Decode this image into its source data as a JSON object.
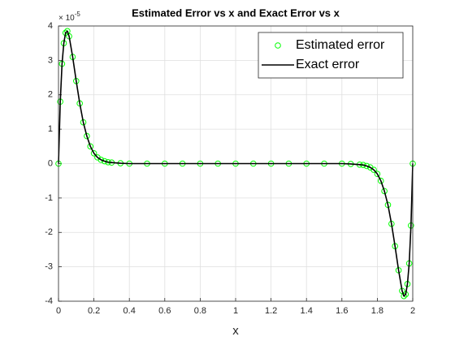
{
  "chart_data": {
    "type": "line",
    "title": "Estimated Error vs x and Exact Error vs x",
    "x_label": "x",
    "y_multiplier": {
      "base": "× 10",
      "power": "-5"
    },
    "x": [
      0,
      0.01,
      0.02,
      0.03,
      0.04,
      0.05,
      0.06,
      0.08,
      0.1,
      0.12,
      0.14,
      0.16,
      0.18,
      0.2,
      0.22,
      0.24,
      0.26,
      0.28,
      0.3,
      0.35,
      0.4,
      0.5,
      0.6,
      0.7,
      0.8,
      0.9,
      1.0,
      1.1,
      1.2,
      1.3,
      1.4,
      1.5,
      1.6,
      1.65,
      1.7,
      1.72,
      1.74,
      1.76,
      1.78,
      1.8,
      1.82,
      1.84,
      1.86,
      1.88,
      1.9,
      1.92,
      1.94,
      1.95,
      1.96,
      1.97,
      1.98,
      1.99,
      2
    ],
    "series": [
      {
        "name": "Estimated error",
        "color": "#00ff00",
        "marker": "circle",
        "values": [
          0,
          1.8,
          2.9,
          3.5,
          3.8,
          3.85,
          3.7,
          3.1,
          2.4,
          1.75,
          1.2,
          0.8,
          0.5,
          0.3,
          0.18,
          0.11,
          0.07,
          0.04,
          0.03,
          0.01,
          0,
          0,
          0,
          0,
          0,
          0,
          0,
          0,
          0,
          0,
          0,
          0,
          0,
          -0.01,
          -0.03,
          -0.04,
          -0.07,
          -0.11,
          -0.18,
          -0.3,
          -0.5,
          -0.8,
          -1.2,
          -1.75,
          -2.4,
          -3.1,
          -3.7,
          -3.85,
          -3.8,
          -3.5,
          -2.9,
          -1.8,
          0
        ]
      },
      {
        "name": "Exact error",
        "color": "#000000",
        "marker": "line",
        "values": [
          0,
          1.8,
          2.9,
          3.5,
          3.8,
          3.85,
          3.7,
          3.1,
          2.4,
          1.75,
          1.2,
          0.8,
          0.5,
          0.3,
          0.18,
          0.11,
          0.07,
          0.04,
          0.03,
          0.01,
          0,
          0,
          0,
          0,
          0,
          0,
          0,
          0,
          0,
          0,
          0,
          0,
          0,
          -0.01,
          -0.03,
          -0.04,
          -0.07,
          -0.11,
          -0.18,
          -0.3,
          -0.5,
          -0.8,
          -1.2,
          -1.75,
          -2.4,
          -3.1,
          -3.7,
          -3.85,
          -3.8,
          -3.5,
          -2.9,
          -1.8,
          0
        ]
      }
    ],
    "xlim": [
      0,
      2
    ],
    "xticks": [
      0,
      0.2,
      0.4,
      0.6,
      0.8,
      1,
      1.2,
      1.4,
      1.6,
      1.8,
      2
    ],
    "ylim": [
      -4,
      4
    ],
    "yticks": [
      -4,
      -3,
      -2,
      -1,
      0,
      1,
      2,
      3,
      4
    ],
    "grid": true,
    "legend": "northeast"
  }
}
